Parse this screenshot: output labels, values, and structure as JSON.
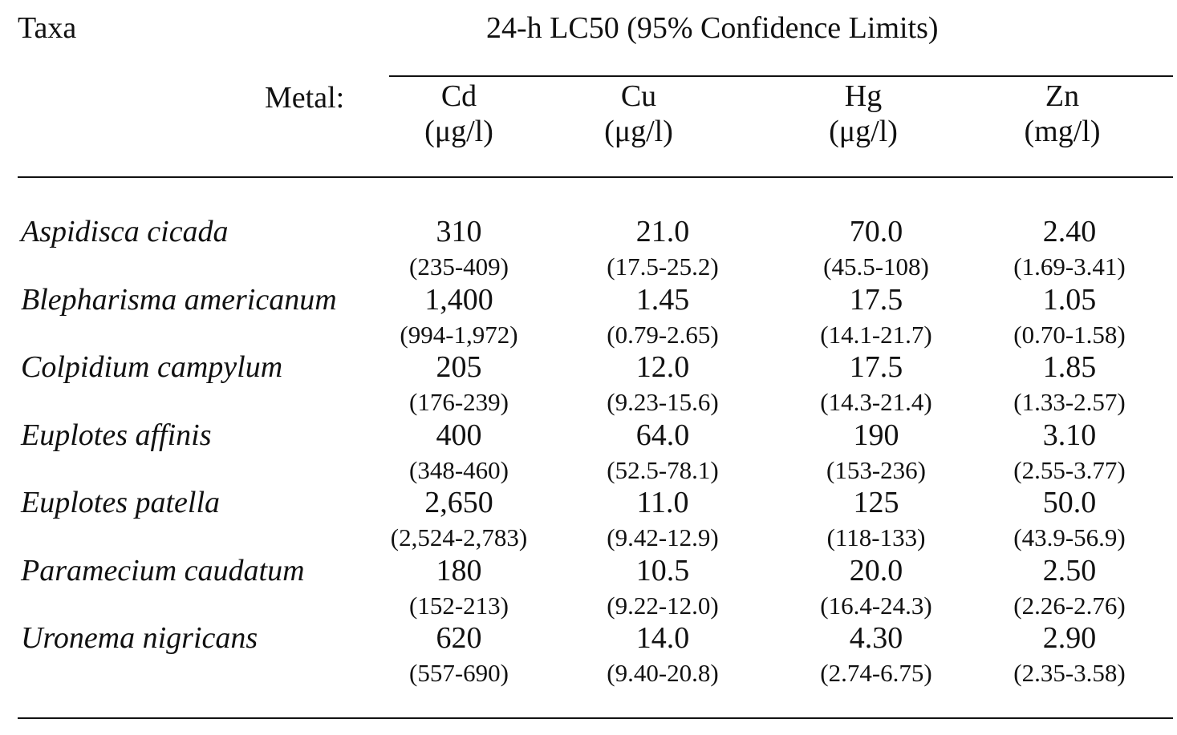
{
  "header": {
    "taxa_label": "Taxa",
    "title": "24-h LC50 (95% Confidence Limits)",
    "metal_label": "Metal:"
  },
  "columns": [
    {
      "metal": "Cd",
      "unit": "(μg/l)"
    },
    {
      "metal": "Cu",
      "unit": "(μg/l)"
    },
    {
      "metal": "Hg",
      "unit": "(μg/l)"
    },
    {
      "metal": "Zn",
      "unit": "(mg/l)"
    }
  ],
  "rows": [
    {
      "taxon": "Aspidisca cicada",
      "values": [
        "310",
        "21.0",
        "70.0",
        "2.40"
      ],
      "limits": [
        "(235-409)",
        "(17.5-25.2)",
        "(45.5-108)",
        "(1.69-3.41)"
      ]
    },
    {
      "taxon": "Blepharisma americanum",
      "values": [
        "1,400",
        "1.45",
        "17.5",
        "1.05"
      ],
      "limits": [
        "(994-1,972)",
        "(0.79-2.65)",
        "(14.1-21.7)",
        "(0.70-1.58)"
      ]
    },
    {
      "taxon": "Colpidium campylum",
      "values": [
        "205",
        "12.0",
        "17.5",
        "1.85"
      ],
      "limits": [
        "(176-239)",
        "(9.23-15.6)",
        "(14.3-21.4)",
        "(1.33-2.57)"
      ]
    },
    {
      "taxon": "Euplotes affinis",
      "values": [
        "400",
        "64.0",
        "190",
        "3.10"
      ],
      "limits": [
        "(348-460)",
        "(52.5-78.1)",
        "(153-236)",
        "(2.55-3.77)"
      ]
    },
    {
      "taxon": "Euplotes patella",
      "values": [
        "2,650",
        "11.0",
        "125",
        "50.0"
      ],
      "limits": [
        "(2,524-2,783)",
        "(9.42-12.9)",
        "(118-133)",
        "(43.9-56.9)"
      ]
    },
    {
      "taxon": "Paramecium caudatum",
      "values": [
        "180",
        "10.5",
        "20.0",
        "2.50"
      ],
      "limits": [
        "(152-213)",
        "(9.22-12.0)",
        "(16.4-24.3)",
        "(2.26-2.76)"
      ]
    },
    {
      "taxon": "Uronema nigricans",
      "values": [
        "620",
        "14.0",
        "4.30",
        "2.90"
      ],
      "limits": [
        "(557-690)",
        "(9.40-20.8)",
        "(2.74-6.75)",
        "(2.35-3.58)"
      ]
    }
  ]
}
